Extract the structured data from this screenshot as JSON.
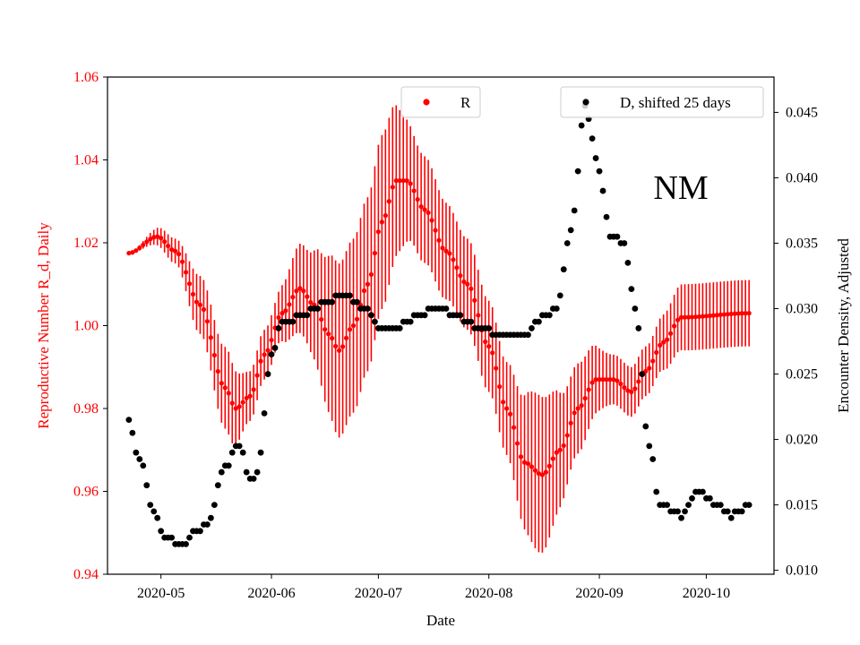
{
  "chart_data": {
    "type": "scatter",
    "annotation": "NM",
    "xlabel": "Date",
    "ylabel_left": "Reproductive Number R_d, Daily",
    "ylabel_right": "Encounter Density, Adjusted",
    "left_axis_color": "#ff0000",
    "right_axis_color": "#000000",
    "x_ticks": [
      "2020-05",
      "2020-06",
      "2020-07",
      "2020-08",
      "2020-09",
      "2020-10"
    ],
    "y_left_ticks": [
      "0.94",
      "0.96",
      "0.98",
      "1.00",
      "1.02",
      "1.04",
      "1.06"
    ],
    "y_right_ticks": [
      "0.010",
      "0.015",
      "0.020",
      "0.025",
      "0.030",
      "0.035",
      "0.040",
      "0.045"
    ],
    "y_left_lim": [
      0.94,
      1.06
    ],
    "y_right_lim": [
      0.0097,
      0.0477
    ],
    "x_lim": [
      "2020-04-16",
      "2020-10-20"
    ],
    "legend": {
      "r_label": "R",
      "d_label": "D, shifted 25 days",
      "r_color": "#ff0000",
      "d_color": "#000000"
    },
    "series": [
      {
        "name": "R",
        "axis": "left",
        "color": "#ff0000",
        "start_date": "2020-04-22",
        "step_days": 1,
        "end_date": "2020-10-13",
        "value_keyframes": [
          {
            "date": "2020-04-22",
            "value": 1.0175
          },
          {
            "date": "2020-04-30",
            "value": 1.0215
          },
          {
            "date": "2020-05-05",
            "value": 1.018
          },
          {
            "date": "2020-05-12",
            "value": 1.005
          },
          {
            "date": "2020-05-19",
            "value": 0.985
          },
          {
            "date": "2020-05-22",
            "value": 0.98
          },
          {
            "date": "2020-05-26",
            "value": 0.983
          },
          {
            "date": "2020-05-30",
            "value": 0.993
          },
          {
            "date": "2020-06-04",
            "value": 1.003
          },
          {
            "date": "2020-06-09",
            "value": 1.009
          },
          {
            "date": "2020-06-13",
            "value": 1.005
          },
          {
            "date": "2020-06-17",
            "value": 0.998
          },
          {
            "date": "2020-06-20",
            "value": 0.994
          },
          {
            "date": "2020-06-24",
            "value": 1.0
          },
          {
            "date": "2020-06-28",
            "value": 1.01
          },
          {
            "date": "2020-07-02",
            "value": 1.025
          },
          {
            "date": "2020-07-06",
            "value": 1.035
          },
          {
            "date": "2020-07-09",
            "value": 1.035
          },
          {
            "date": "2020-07-14",
            "value": 1.028
          },
          {
            "date": "2020-07-20",
            "value": 1.018
          },
          {
            "date": "2020-07-26",
            "value": 1.01
          },
          {
            "date": "2020-08-01",
            "value": 0.995
          },
          {
            "date": "2020-08-06",
            "value": 0.98
          },
          {
            "date": "2020-08-11",
            "value": 0.967
          },
          {
            "date": "2020-08-16",
            "value": 0.964
          },
          {
            "date": "2020-08-21",
            "value": 0.97
          },
          {
            "date": "2020-08-26",
            "value": 0.98
          },
          {
            "date": "2020-08-31",
            "value": 0.987
          },
          {
            "date": "2020-09-05",
            "value": 0.987
          },
          {
            "date": "2020-09-10",
            "value": 0.984
          },
          {
            "date": "2020-09-14",
            "value": 0.989
          },
          {
            "date": "2020-09-19",
            "value": 0.996
          },
          {
            "date": "2020-09-24",
            "value": 1.002
          },
          {
            "date": "2020-10-13",
            "value": 1.003
          }
        ],
        "error_keyframes": [
          {
            "date": "2020-04-22",
            "value": 0.0003
          },
          {
            "date": "2020-05-05",
            "value": 0.003
          },
          {
            "date": "2020-05-12",
            "value": 0.007
          },
          {
            "date": "2020-05-20",
            "value": 0.01
          },
          {
            "date": "2020-05-26",
            "value": 0.006
          },
          {
            "date": "2020-06-02",
            "value": 0.006
          },
          {
            "date": "2020-06-10",
            "value": 0.011
          },
          {
            "date": "2020-06-20",
            "value": 0.021
          },
          {
            "date": "2020-07-02",
            "value": 0.021
          },
          {
            "date": "2020-07-12",
            "value": 0.013
          },
          {
            "date": "2020-07-25",
            "value": 0.011
          },
          {
            "date": "2020-08-05",
            "value": 0.011
          },
          {
            "date": "2020-08-15",
            "value": 0.019
          },
          {
            "date": "2020-08-25",
            "value": 0.011
          },
          {
            "date": "2020-09-05",
            "value": 0.006
          },
          {
            "date": "2020-09-15",
            "value": 0.006
          },
          {
            "date": "2020-09-25",
            "value": 0.008
          },
          {
            "date": "2020-10-13",
            "value": 0.008
          }
        ]
      },
      {
        "name": "D, shifted 25 days",
        "axis": "right",
        "color": "#000000",
        "start_date": "2020-04-22",
        "step_days": 1,
        "end_date": "2020-10-13",
        "value_keyframes": [
          {
            "date": "2020-04-22",
            "value": 0.0213
          },
          {
            "date": "2020-04-25",
            "value": 0.0185
          },
          {
            "date": "2020-04-29",
            "value": 0.0145
          },
          {
            "date": "2020-05-02",
            "value": 0.0127
          },
          {
            "date": "2020-05-07",
            "value": 0.0118
          },
          {
            "date": "2020-05-10",
            "value": 0.0128
          },
          {
            "date": "2020-05-14",
            "value": 0.0135
          },
          {
            "date": "2020-05-19",
            "value": 0.018
          },
          {
            "date": "2020-05-23",
            "value": 0.0195
          },
          {
            "date": "2020-05-26",
            "value": 0.0168
          },
          {
            "date": "2020-05-28",
            "value": 0.0175
          },
          {
            "date": "2020-06-01",
            "value": 0.0265
          },
          {
            "date": "2020-06-04",
            "value": 0.029
          },
          {
            "date": "2020-06-10",
            "value": 0.0295
          },
          {
            "date": "2020-06-16",
            "value": 0.0305
          },
          {
            "date": "2020-06-22",
            "value": 0.031
          },
          {
            "date": "2020-06-27",
            "value": 0.03
          },
          {
            "date": "2020-07-02",
            "value": 0.0285
          },
          {
            "date": "2020-07-07",
            "value": 0.0287
          },
          {
            "date": "2020-07-12",
            "value": 0.0295
          },
          {
            "date": "2020-07-17",
            "value": 0.0302
          },
          {
            "date": "2020-07-23",
            "value": 0.0294
          },
          {
            "date": "2020-07-30",
            "value": 0.0285
          },
          {
            "date": "2020-08-04",
            "value": 0.0279
          },
          {
            "date": "2020-08-11",
            "value": 0.0279
          },
          {
            "date": "2020-08-14",
            "value": 0.029
          },
          {
            "date": "2020-08-20",
            "value": 0.03
          },
          {
            "date": "2020-08-24",
            "value": 0.036
          },
          {
            "date": "2020-08-28",
            "value": 0.0455
          },
          {
            "date": "2020-09-01",
            "value": 0.0405
          },
          {
            "date": "2020-09-04",
            "value": 0.0355
          },
          {
            "date": "2020-09-08",
            "value": 0.035
          },
          {
            "date": "2020-09-11",
            "value": 0.03
          },
          {
            "date": "2020-09-15",
            "value": 0.0195
          },
          {
            "date": "2020-09-18",
            "value": 0.015
          },
          {
            "date": "2020-09-24",
            "value": 0.0142
          },
          {
            "date": "2020-09-29",
            "value": 0.016
          },
          {
            "date": "2020-10-03",
            "value": 0.0152
          },
          {
            "date": "2020-10-08",
            "value": 0.0142
          },
          {
            "date": "2020-10-13",
            "value": 0.015
          }
        ]
      }
    ]
  }
}
